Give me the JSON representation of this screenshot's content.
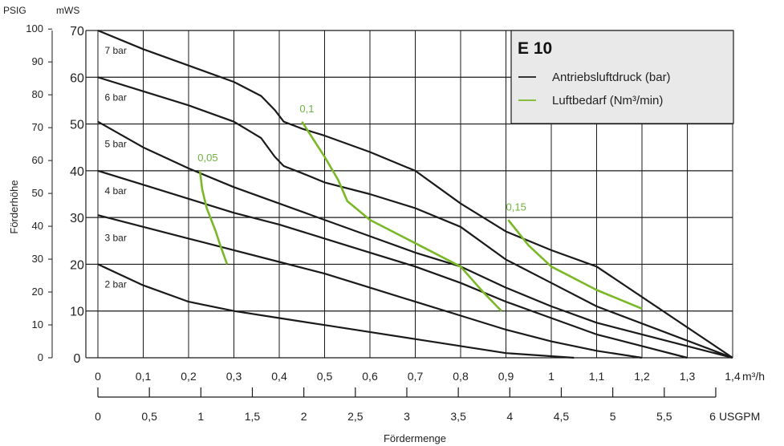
{
  "chart_data": {
    "type": "line",
    "title": "E 10",
    "xlabel": "Fördermenge",
    "ylabel": "Förderhöhe",
    "x_unit_primary": "m³/h",
    "x_unit_secondary": "USGPM",
    "y_unit_psig": "PSIG",
    "y_unit_mws": "mWS",
    "xlim": [
      0,
      1.4
    ],
    "ylim": [
      0,
      70
    ],
    "grid": true,
    "legend": {
      "placement": "top-right",
      "items": [
        {
          "label": "Antriebsluftdruck (bar)",
          "color": "#1a1a1a"
        },
        {
          "label": "Luftbedarf (Nm³/min)",
          "color": "#7ab828"
        }
      ]
    },
    "x_ticks_m3h": [
      "0",
      "0,1",
      "0,2",
      "0,3",
      "0,4",
      "0,5",
      "0,6",
      "0,7",
      "0,8",
      "0,9",
      "1",
      "1,1",
      "1,2",
      "1,3",
      "1,4"
    ],
    "x_ticks_usgpm": [
      "0",
      "0,5",
      "1",
      "1,5",
      "2",
      "2,5",
      "3",
      "3,5",
      "4",
      "4,5",
      "5",
      "5,5",
      "6"
    ],
    "y_ticks_mws": [
      "0",
      "10",
      "20",
      "30",
      "40",
      "50",
      "60",
      "70"
    ],
    "y_ticks_psig": [
      "0",
      "10",
      "20",
      "30",
      "40",
      "50",
      "60",
      "70",
      "80",
      "90",
      "100"
    ],
    "series": [
      {
        "name": "7 bar",
        "color": "#1a1a1a",
        "points": [
          [
            0,
            70
          ],
          [
            0.1,
            66
          ],
          [
            0.2,
            62.5
          ],
          [
            0.3,
            59
          ],
          [
            0.36,
            56
          ],
          [
            0.39,
            53
          ],
          [
            0.41,
            50.5
          ],
          [
            0.45,
            49
          ],
          [
            0.5,
            47.5
          ],
          [
            0.6,
            44
          ],
          [
            0.7,
            40
          ],
          [
            0.8,
            33
          ],
          [
            0.9,
            27
          ],
          [
            1.0,
            23
          ],
          [
            1.1,
            19.5
          ],
          [
            1.4,
            0
          ]
        ]
      },
      {
        "name": "6 bar",
        "color": "#1a1a1a",
        "points": [
          [
            0,
            60
          ],
          [
            0.1,
            57
          ],
          [
            0.2,
            54
          ],
          [
            0.3,
            50.5
          ],
          [
            0.36,
            47
          ],
          [
            0.39,
            43
          ],
          [
            0.41,
            41
          ],
          [
            0.45,
            39.5
          ],
          [
            0.5,
            37.5
          ],
          [
            0.6,
            35
          ],
          [
            0.7,
            32
          ],
          [
            0.8,
            28
          ],
          [
            0.9,
            21
          ],
          [
            1.0,
            16
          ],
          [
            1.1,
            11
          ],
          [
            1.4,
            0
          ]
        ]
      },
      {
        "name": "5 bar",
        "color": "#1a1a1a",
        "points": [
          [
            0,
            50.5
          ],
          [
            0.1,
            45
          ],
          [
            0.2,
            40.5
          ],
          [
            0.3,
            36.5
          ],
          [
            0.4,
            33
          ],
          [
            0.5,
            29.5
          ],
          [
            0.6,
            26
          ],
          [
            0.7,
            22.5
          ],
          [
            0.8,
            19.5
          ],
          [
            0.9,
            15
          ],
          [
            1.0,
            11
          ],
          [
            1.1,
            7.5
          ],
          [
            1.2,
            5
          ],
          [
            1.4,
            0
          ]
        ]
      },
      {
        "name": "4 bar",
        "color": "#1a1a1a",
        "points": [
          [
            0,
            40
          ],
          [
            0.1,
            37
          ],
          [
            0.2,
            34
          ],
          [
            0.3,
            31
          ],
          [
            0.4,
            28.5
          ],
          [
            0.5,
            25.5
          ],
          [
            0.6,
            22.5
          ],
          [
            0.7,
            19.5
          ],
          [
            0.8,
            16
          ],
          [
            0.9,
            12
          ],
          [
            1.0,
            8.5
          ],
          [
            1.1,
            5
          ],
          [
            1.2,
            2.5
          ],
          [
            1.3,
            0
          ]
        ]
      },
      {
        "name": "3 bar",
        "color": "#1a1a1a",
        "points": [
          [
            0,
            30.5
          ],
          [
            0.1,
            28
          ],
          [
            0.2,
            25.5
          ],
          [
            0.3,
            23
          ],
          [
            0.4,
            20.5
          ],
          [
            0.5,
            18
          ],
          [
            0.6,
            15
          ],
          [
            0.7,
            12
          ],
          [
            0.8,
            9
          ],
          [
            0.9,
            6
          ],
          [
            1.0,
            3.5
          ],
          [
            1.1,
            1.5
          ],
          [
            1.2,
            0
          ]
        ]
      },
      {
        "name": "2 bar",
        "color": "#1a1a1a",
        "points": [
          [
            0,
            20
          ],
          [
            0.1,
            15.5
          ],
          [
            0.2,
            12
          ],
          [
            0.3,
            10
          ],
          [
            0.4,
            8.5
          ],
          [
            0.5,
            7
          ],
          [
            0.6,
            5.5
          ],
          [
            0.7,
            4
          ],
          [
            0.8,
            2.5
          ],
          [
            0.9,
            1
          ],
          [
            1.05,
            0
          ]
        ]
      },
      {
        "name": "0,05",
        "color": "#7ab828",
        "points": [
          [
            0.225,
            40
          ],
          [
            0.23,
            36
          ],
          [
            0.24,
            32
          ],
          [
            0.26,
            27
          ],
          [
            0.27,
            24
          ],
          [
            0.285,
            20
          ]
        ]
      },
      {
        "name": "0,1",
        "color": "#7ab828",
        "points": [
          [
            0.45,
            50.5
          ],
          [
            0.5,
            43
          ],
          [
            0.53,
            38
          ],
          [
            0.55,
            33.5
          ],
          [
            0.6,
            29.5
          ],
          [
            0.7,
            24.5
          ],
          [
            0.8,
            19.5
          ],
          [
            0.85,
            14
          ],
          [
            0.89,
            10
          ]
        ]
      },
      {
        "name": "0,15",
        "color": "#7ab828",
        "points": [
          [
            0.905,
            29.5
          ],
          [
            0.95,
            24
          ],
          [
            1.0,
            19.5
          ],
          [
            1.1,
            14.5
          ],
          [
            1.2,
            10.5
          ]
        ]
      }
    ],
    "annotations": [
      {
        "text": "7 bar",
        "x": 0.015,
        "y": 65
      },
      {
        "text": "6 bar",
        "x": 0.015,
        "y": 55
      },
      {
        "text": "5 bar",
        "x": 0.015,
        "y": 45
      },
      {
        "text": "4 bar",
        "x": 0.015,
        "y": 35
      },
      {
        "text": "3 bar",
        "x": 0.015,
        "y": 25
      },
      {
        "text": "2 bar",
        "x": 0.015,
        "y": 15
      },
      {
        "text": "0,05",
        "x": 0.22,
        "y": 42
      },
      {
        "text": "0,1",
        "x": 0.445,
        "y": 52.5
      },
      {
        "text": "0,15",
        "x": 0.9,
        "y": 31.5
      }
    ]
  }
}
